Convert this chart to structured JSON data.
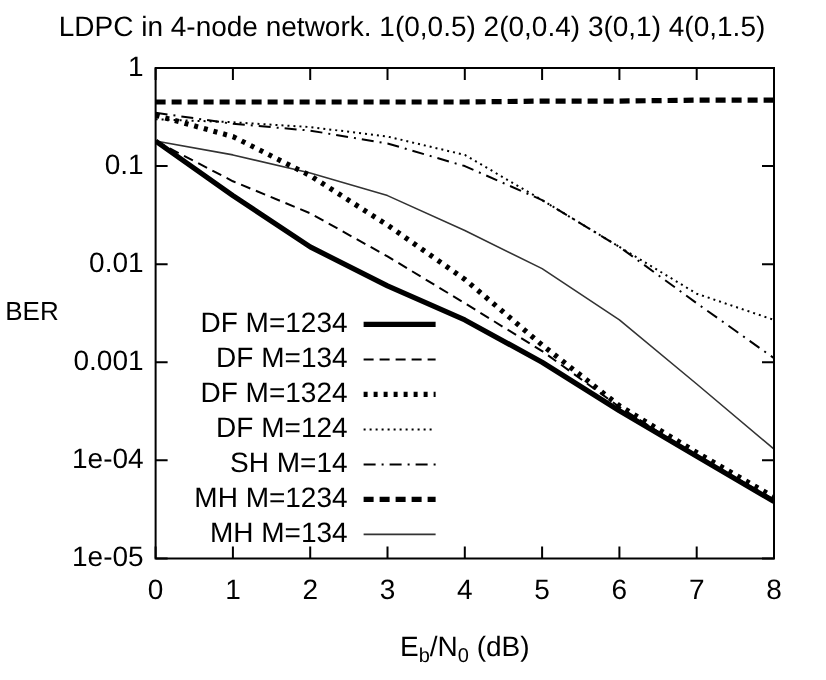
{
  "chart_data": {
    "type": "line",
    "title": "LDPC in 4-node network. 1(0,0.5) 2(0,0.4) 3(0,1) 4(0,1.5)",
    "xlabel": "E$_{b}$/N$_{0}$ (dB)",
    "ylabel": "BER",
    "x": [
      0,
      1,
      2,
      3,
      4,
      5,
      6,
      7,
      8
    ],
    "series": [
      {
        "name": "DF M=1234",
        "color": "#000000",
        "line_style": "solid",
        "values": [
          0.18,
          0.05,
          0.015,
          0.006,
          0.0027,
          0.001,
          0.00032,
          0.00011,
          3.8e-05
        ]
      },
      {
        "name": "DF M=134",
        "color": "#000000",
        "line_style": "dashed",
        "values": [
          0.18,
          0.07,
          0.033,
          0.012,
          0.004,
          0.0013,
          0.00035,
          0.00011,
          4e-05
        ]
      },
      {
        "name": "DF M=1324",
        "color": "#000000",
        "line_style": "dotted",
        "values": [
          0.33,
          0.2,
          0.08,
          0.025,
          0.007,
          0.0015,
          0.00036,
          0.00012,
          4.2e-05
        ]
      },
      {
        "name": "DF M=124",
        "color": "#000000",
        "line_style": "dotted",
        "values": [
          0.3,
          0.28,
          0.25,
          0.2,
          0.13,
          0.045,
          0.015,
          0.005,
          0.0027
        ]
      },
      {
        "name": "SH M=14",
        "color": "#000000",
        "line_style": "dashdot",
        "values": [
          0.35,
          0.27,
          0.23,
          0.17,
          0.1,
          0.045,
          0.015,
          0.004,
          0.0011
        ]
      },
      {
        "name": "MH M=1234",
        "color": "#000000",
        "line_style": "dashed",
        "values": [
          0.45,
          0.45,
          0.45,
          0.45,
          0.45,
          0.46,
          0.46,
          0.47,
          0.47
        ]
      },
      {
        "name": "MH M=134",
        "color": "#333333",
        "line_style": "solid",
        "values": [
          0.18,
          0.13,
          0.085,
          0.05,
          0.022,
          0.009,
          0.0027,
          0.0006,
          0.00013
        ]
      }
    ],
    "xlim": [
      0,
      8
    ],
    "xticks": [
      0,
      1,
      2,
      3,
      4,
      5,
      6,
      7,
      8
    ],
    "ylim": [
      1e-05,
      1
    ],
    "yticks": [
      {
        "value": 1e-05,
        "label": "1e-05"
      },
      {
        "value": 0.0001,
        "label": "1e-04"
      },
      0.001,
      0.01,
      0.1,
      1
    ],
    "log": "y",
    "grid": false,
    "legend": "bottom left",
    "marker": "none"
  }
}
